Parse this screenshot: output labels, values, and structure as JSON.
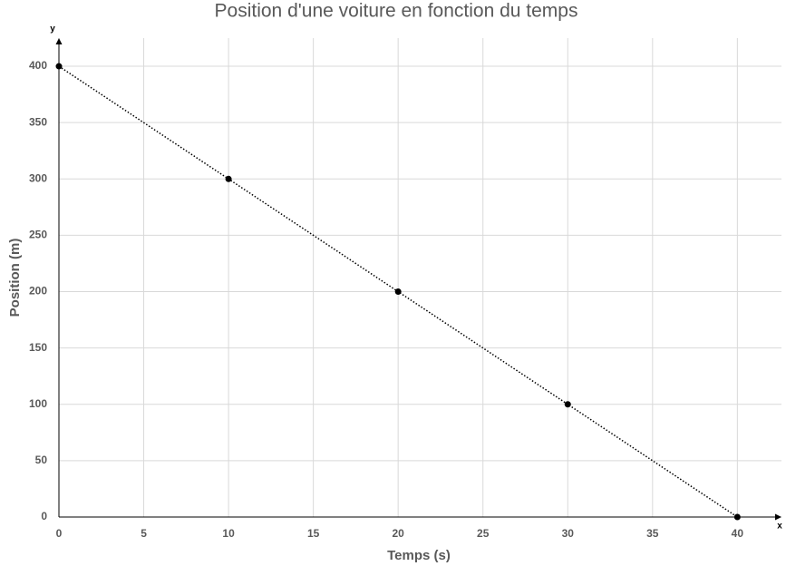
{
  "chart_data": {
    "type": "scatter",
    "title": "Position d'une voiture en fonction du temps",
    "x_label": "Temps (s)",
    "y_label": "Position (m)",
    "x_axis_name": "x",
    "y_axis_name": "y",
    "x": [
      0,
      10,
      20,
      30,
      40
    ],
    "values": [
      400,
      300,
      200,
      100,
      0
    ],
    "color": "#000000",
    "line": "dotted",
    "xlim": [
      0,
      42.6
    ],
    "ylim": [
      0,
      425
    ],
    "xticks": [
      0,
      5,
      10,
      15,
      20,
      25,
      30,
      35,
      40
    ],
    "yticks": [
      0,
      50,
      100,
      150,
      200,
      250,
      300,
      350,
      400
    ],
    "grid": true
  }
}
